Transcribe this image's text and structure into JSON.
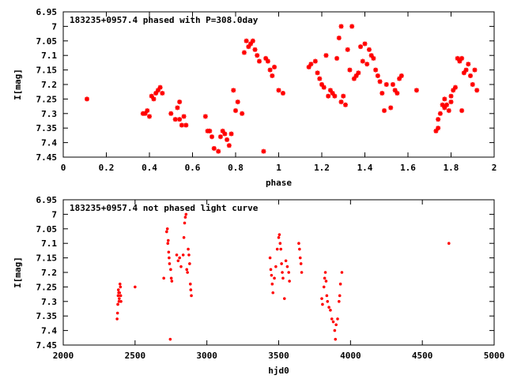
{
  "chart_data": [
    {
      "type": "scatter",
      "title": "183235+0957.4 phased with P=308.0day",
      "xlabel": "phase",
      "ylabel": "I[mag]",
      "xlim": [
        0,
        2
      ],
      "ylim": [
        6.95,
        7.45
      ],
      "y_inverted": true,
      "xticks": [
        "0",
        "0.2",
        "0.4",
        "0.6",
        "0.8",
        "1",
        "1.2",
        "1.4",
        "1.6",
        "1.8",
        "2"
      ],
      "yticks": [
        "6.95",
        "7",
        "7.05",
        "7.1",
        "7.15",
        "7.2",
        "7.25",
        "7.3",
        "7.35",
        "7.4",
        "7.45"
      ],
      "marker": "star",
      "color": "#ff0000",
      "series": [
        {
          "points": [
            [
              0.11,
              7.25
            ],
            [
              0.37,
              7.3
            ],
            [
              0.38,
              7.3
            ],
            [
              0.39,
              7.29
            ],
            [
              0.4,
              7.31
            ],
            [
              0.41,
              7.24
            ],
            [
              0.42,
              7.25
            ],
            [
              0.43,
              7.23
            ],
            [
              0.44,
              7.22
            ],
            [
              0.45,
              7.21
            ],
            [
              0.46,
              7.23
            ],
            [
              0.5,
              7.3
            ],
            [
              0.52,
              7.32
            ],
            [
              0.53,
              7.28
            ],
            [
              0.54,
              7.26
            ],
            [
              0.54,
              7.32
            ],
            [
              0.55,
              7.34
            ],
            [
              0.56,
              7.31
            ],
            [
              0.57,
              7.34
            ],
            [
              0.66,
              7.31
            ],
            [
              0.67,
              7.36
            ],
            [
              0.68,
              7.36
            ],
            [
              0.69,
              7.38
            ],
            [
              0.7,
              7.42
            ],
            [
              0.72,
              7.43
            ],
            [
              0.73,
              7.38
            ],
            [
              0.74,
              7.36
            ],
            [
              0.75,
              7.37
            ],
            [
              0.76,
              7.39
            ],
            [
              0.77,
              7.41
            ],
            [
              0.78,
              7.37
            ],
            [
              0.79,
              7.22
            ],
            [
              0.8,
              7.29
            ],
            [
              0.81,
              7.26
            ],
            [
              0.83,
              7.3
            ],
            [
              0.84,
              7.09
            ],
            [
              0.85,
              7.05
            ],
            [
              0.86,
              7.07
            ],
            [
              0.87,
              7.06
            ],
            [
              0.88,
              7.05
            ],
            [
              0.89,
              7.08
            ],
            [
              0.9,
              7.1
            ],
            [
              0.91,
              7.12
            ],
            [
              0.93,
              7.43
            ],
            [
              0.94,
              7.11
            ],
            [
              0.95,
              7.12
            ],
            [
              0.96,
              7.15
            ],
            [
              0.97,
              7.17
            ],
            [
              0.98,
              7.14
            ],
            [
              1.0,
              7.22
            ],
            [
              1.02,
              7.23
            ],
            [
              1.14,
              7.14
            ],
            [
              1.15,
              7.13
            ],
            [
              1.17,
              7.12
            ],
            [
              1.18,
              7.16
            ],
            [
              1.19,
              7.18
            ],
            [
              1.2,
              7.2
            ],
            [
              1.21,
              7.21
            ],
            [
              1.22,
              7.1
            ],
            [
              1.23,
              7.24
            ],
            [
              1.24,
              7.22
            ],
            [
              1.25,
              7.23
            ],
            [
              1.26,
              7.24
            ],
            [
              1.27,
              7.11
            ],
            [
              1.28,
              7.04
            ],
            [
              1.29,
              7.0
            ],
            [
              1.29,
              7.26
            ],
            [
              1.3,
              7.24
            ],
            [
              1.31,
              7.27
            ],
            [
              1.32,
              7.08
            ],
            [
              1.33,
              7.15
            ],
            [
              1.34,
              7.0
            ],
            [
              1.35,
              7.18
            ],
            [
              1.36,
              7.17
            ],
            [
              1.37,
              7.16
            ],
            [
              1.38,
              7.07
            ],
            [
              1.39,
              7.12
            ],
            [
              1.4,
              7.06
            ],
            [
              1.41,
              7.13
            ],
            [
              1.42,
              7.08
            ],
            [
              1.43,
              7.1
            ],
            [
              1.44,
              7.11
            ],
            [
              1.45,
              7.15
            ],
            [
              1.46,
              7.17
            ],
            [
              1.47,
              7.19
            ],
            [
              1.48,
              7.23
            ],
            [
              1.49,
              7.29
            ],
            [
              1.5,
              7.2
            ],
            [
              1.52,
              7.28
            ],
            [
              1.53,
              7.2
            ],
            [
              1.54,
              7.22
            ],
            [
              1.55,
              7.23
            ],
            [
              1.56,
              7.18
            ],
            [
              1.57,
              7.17
            ],
            [
              1.64,
              7.22
            ],
            [
              1.73,
              7.36
            ],
            [
              1.74,
              7.35
            ],
            [
              1.75,
              7.3
            ],
            [
              1.76,
              7.27
            ],
            [
              1.77,
              7.28
            ],
            [
              1.78,
              7.27
            ],
            [
              1.79,
              7.29
            ],
            [
              1.8,
              7.26
            ],
            [
              1.81,
              7.22
            ],
            [
              1.82,
              7.21
            ],
            [
              1.83,
              7.11
            ],
            [
              1.84,
              7.12
            ],
            [
              1.85,
              7.11
            ],
            [
              1.86,
              7.16
            ],
            [
              1.87,
              7.15
            ],
            [
              1.88,
              7.13
            ],
            [
              1.89,
              7.17
            ],
            [
              1.9,
              7.2
            ],
            [
              1.91,
              7.15
            ],
            [
              1.92,
              7.22
            ],
            [
              1.85,
              7.29
            ],
            [
              1.8,
              7.24
            ],
            [
              1.74,
              7.32
            ],
            [
              1.77,
              7.25
            ]
          ]
        }
      ]
    },
    {
      "type": "scatter",
      "title": "183235+0957.4 not phased light curve",
      "xlabel": "hjd0",
      "ylabel": "I[mag]",
      "xlim": [
        2000,
        5000
      ],
      "ylim": [
        6.95,
        7.45
      ],
      "y_inverted": true,
      "xticks": [
        "2000",
        "2500",
        "3000",
        "3500",
        "4000",
        "4500",
        "5000"
      ],
      "yticks": [
        "6.95",
        "7",
        "7.05",
        "7.1",
        "7.15",
        "7.2",
        "7.25",
        "7.3",
        "7.35",
        "7.4",
        "7.45"
      ],
      "marker": "dot",
      "color": "#ff0000",
      "series": [
        {
          "points": [
            [
              2375,
              7.36
            ],
            [
              2378,
              7.34
            ],
            [
              2380,
              7.31
            ],
            [
              2382,
              7.28
            ],
            [
              2384,
              7.26
            ],
            [
              2386,
              7.27
            ],
            [
              2388,
              7.3
            ],
            [
              2390,
              7.29
            ],
            [
              2392,
              7.27
            ],
            [
              2395,
              7.24
            ],
            [
              2398,
              7.25
            ],
            [
              2400,
              7.28
            ],
            [
              2402,
              7.3
            ],
            [
              2500,
              7.25
            ],
            [
              2700,
              7.22
            ],
            [
              2720,
              7.06
            ],
            [
              2725,
              7.05
            ],
            [
              2728,
              7.1
            ],
            [
              2731,
              7.09
            ],
            [
              2734,
              7.13
            ],
            [
              2737,
              7.15
            ],
            [
              2740,
              7.17
            ],
            [
              2745,
              7.43
            ],
            [
              2748,
              7.19
            ],
            [
              2752,
              7.22
            ],
            [
              2756,
              7.23
            ],
            [
              2790,
              7.14
            ],
            [
              2800,
              7.16
            ],
            [
              2810,
              7.15
            ],
            [
              2820,
              7.18
            ],
            [
              2835,
              7.14
            ],
            [
              2840,
              7.08
            ],
            [
              2845,
              7.03
            ],
            [
              2850,
              7.01
            ],
            [
              2855,
              7.0
            ],
            [
              2860,
              7.19
            ],
            [
              2865,
              7.2
            ],
            [
              2870,
              7.12
            ],
            [
              2875,
              7.14
            ],
            [
              2880,
              7.17
            ],
            [
              2885,
              7.24
            ],
            [
              2888,
              7.26
            ],
            [
              2892,
              7.28
            ],
            [
              3440,
              7.15
            ],
            [
              3445,
              7.19
            ],
            [
              3450,
              7.21
            ],
            [
              3455,
              7.24
            ],
            [
              3460,
              7.27
            ],
            [
              3470,
              7.22
            ],
            [
              3480,
              7.18
            ],
            [
              3490,
              7.12
            ],
            [
              3500,
              7.08
            ],
            [
              3505,
              7.07
            ],
            [
              3510,
              7.1
            ],
            [
              3515,
              7.12
            ],
            [
              3520,
              7.17
            ],
            [
              3525,
              7.2
            ],
            [
              3530,
              7.22
            ],
            [
              3540,
              7.29
            ],
            [
              3550,
              7.16
            ],
            [
              3560,
              7.18
            ],
            [
              3570,
              7.2
            ],
            [
              3575,
              7.23
            ],
            [
              3640,
              7.1
            ],
            [
              3645,
              7.12
            ],
            [
              3650,
              7.15
            ],
            [
              3655,
              7.17
            ],
            [
              3660,
              7.2
            ],
            [
              3800,
              7.29
            ],
            [
              3805,
              7.31
            ],
            [
              3815,
              7.25
            ],
            [
              3820,
              7.22
            ],
            [
              3825,
              7.2
            ],
            [
              3830,
              7.23
            ],
            [
              3835,
              7.28
            ],
            [
              3840,
              7.3
            ],
            [
              3850,
              7.32
            ],
            [
              3860,
              7.33
            ],
            [
              3870,
              7.36
            ],
            [
              3880,
              7.37
            ],
            [
              3890,
              7.4
            ],
            [
              3895,
              7.43
            ],
            [
              3900,
              7.38
            ],
            [
              3910,
              7.36
            ],
            [
              3920,
              7.3
            ],
            [
              3925,
              7.28
            ],
            [
              3930,
              7.24
            ],
            [
              3940,
              7.2
            ],
            [
              4685,
              7.1
            ]
          ]
        }
      ]
    }
  ]
}
